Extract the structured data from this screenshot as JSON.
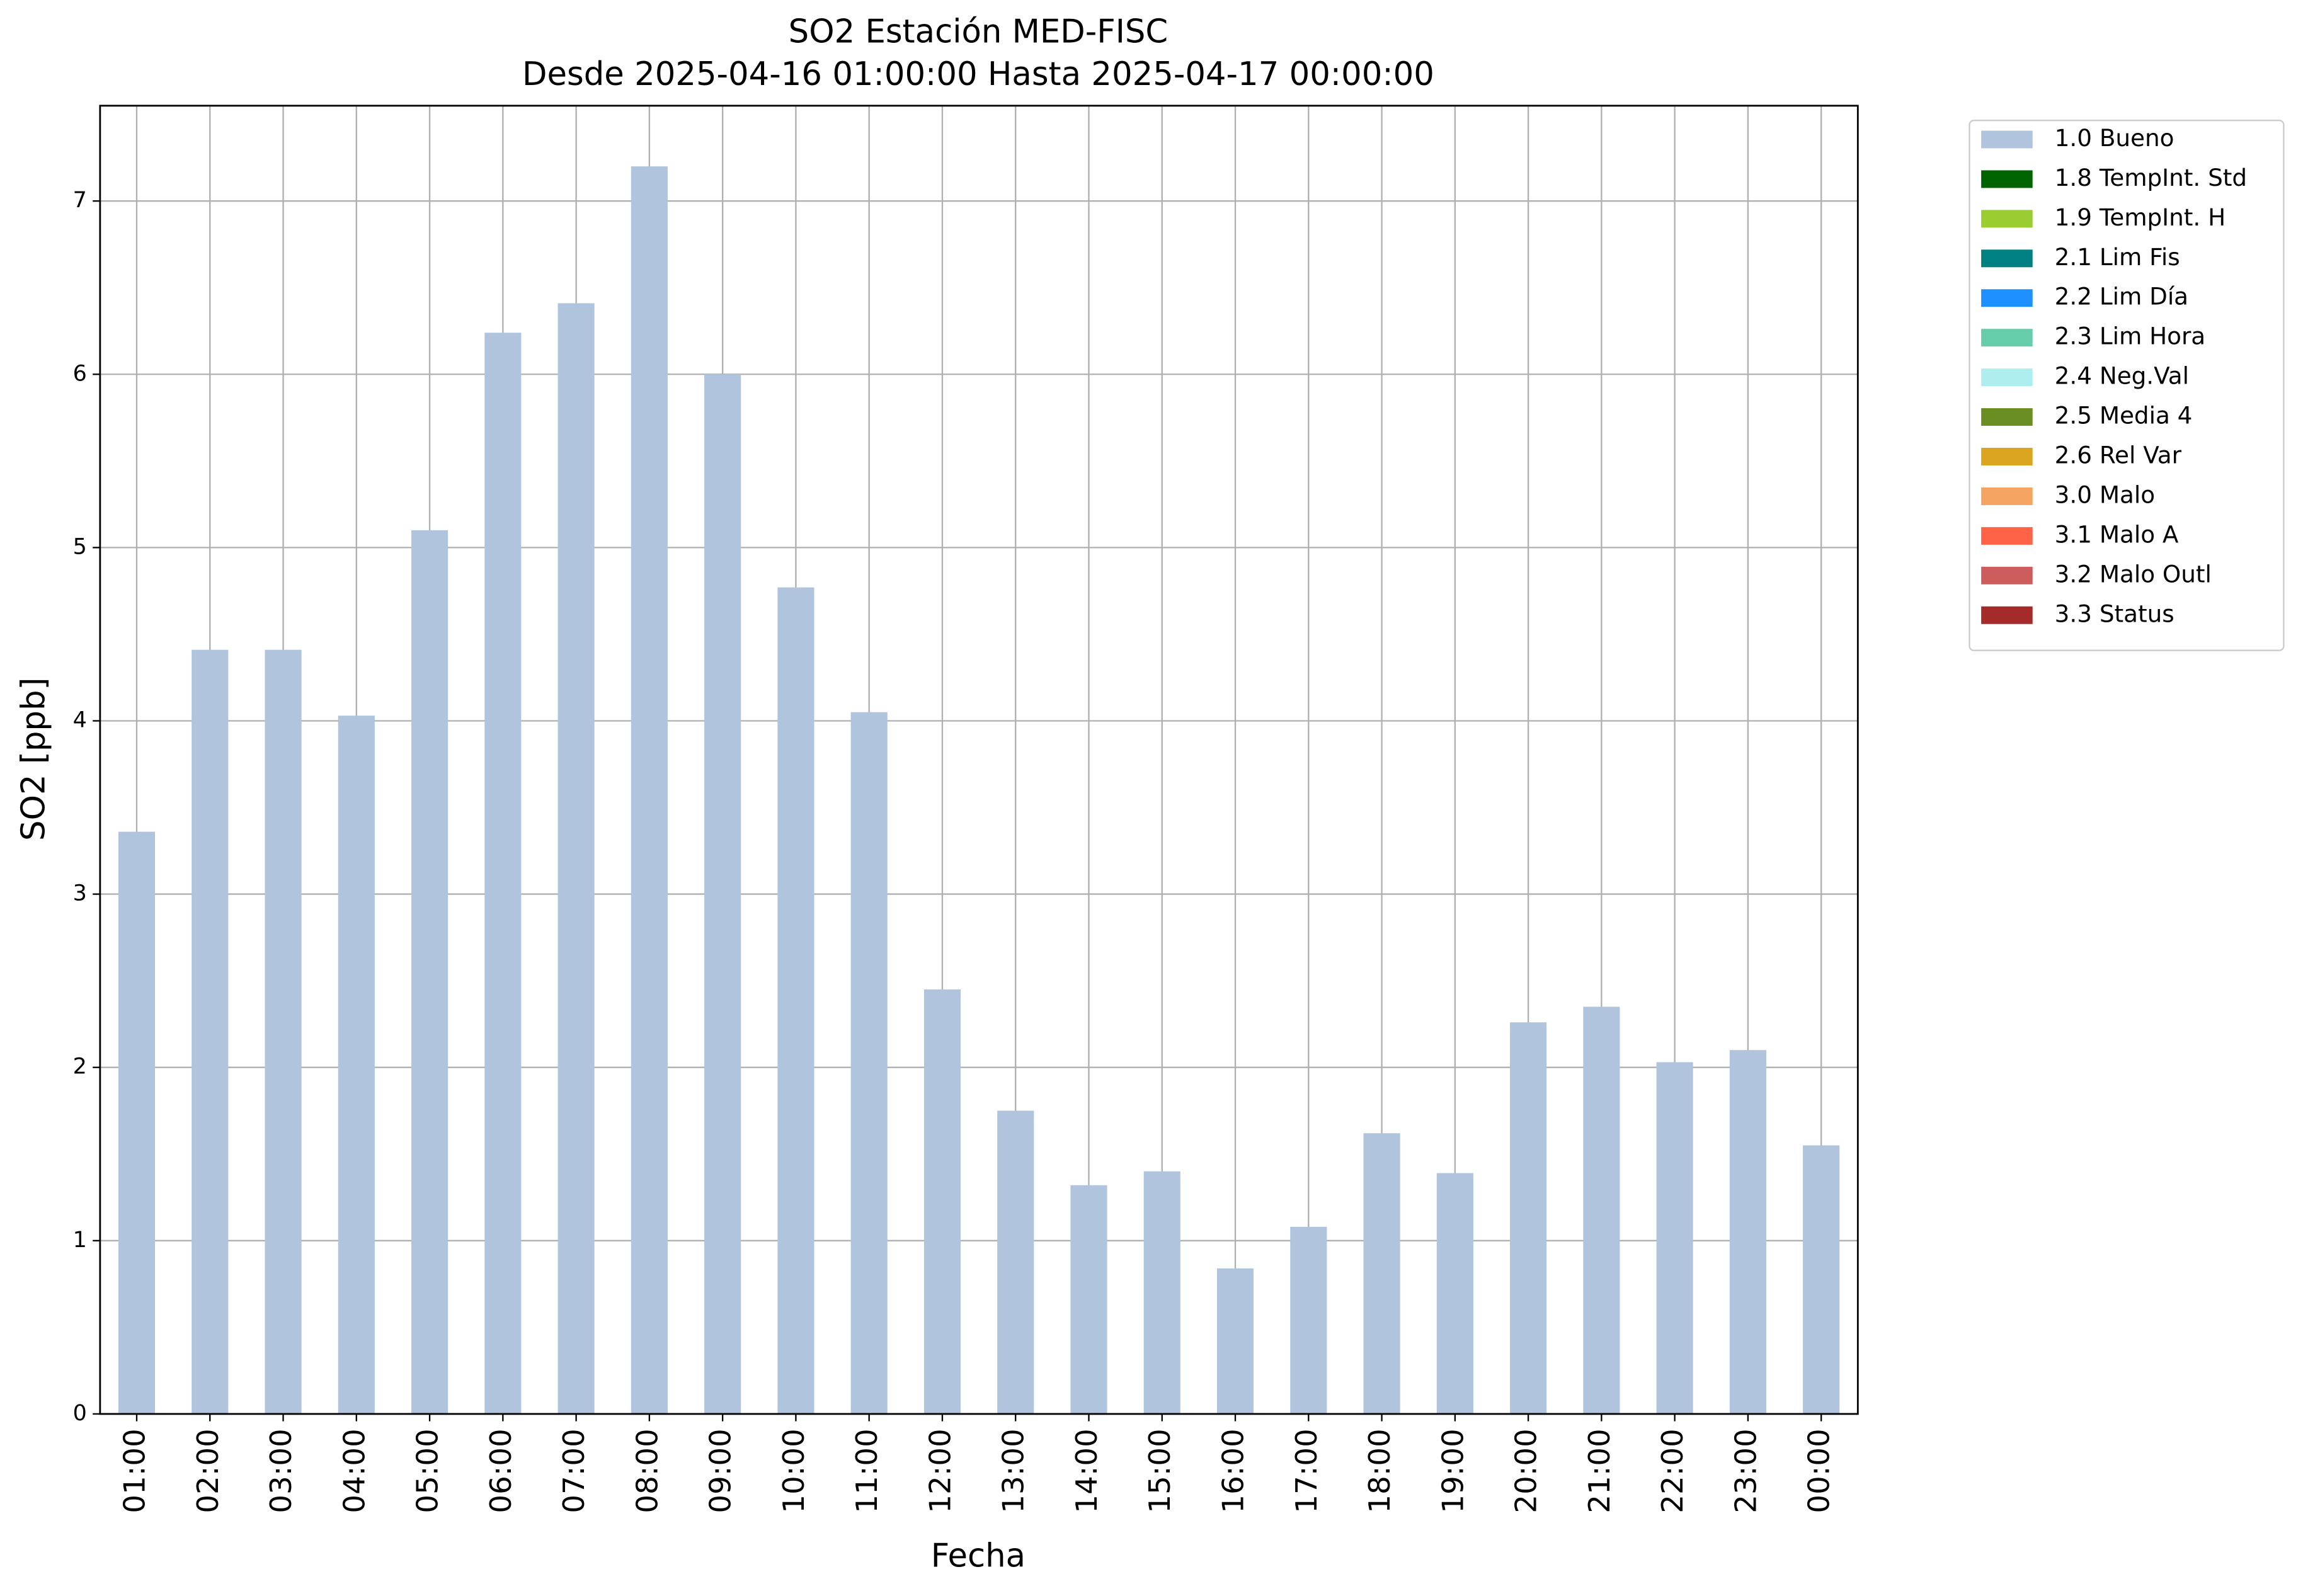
{
  "chart_data": {
    "type": "bar",
    "stacked": true,
    "title": "SO2 Estación MED-FISC",
    "subtitle": "Desde 2025-04-16 01:00:00 Hasta 2025-04-17 00:00:00",
    "x_label": "Fecha",
    "y_label": "SO2 [ppb]",
    "categories": [
      "01:00",
      "02:00",
      "03:00",
      "04:00",
      "05:00",
      "06:00",
      "07:00",
      "08:00",
      "09:00",
      "10:00",
      "11:00",
      "12:00",
      "13:00",
      "14:00",
      "15:00",
      "16:00",
      "17:00",
      "18:00",
      "19:00",
      "20:00",
      "21:00",
      "22:00",
      "23:00",
      "00:00"
    ],
    "series": [
      {
        "name": "1.0 Bueno",
        "color": "#b0c4de",
        "values": [
          3.36,
          4.41,
          4.41,
          4.03,
          5.1,
          6.24,
          6.41,
          7.2,
          6.0,
          4.77,
          4.05,
          2.45,
          1.75,
          1.32,
          1.4,
          0.84,
          1.08,
          1.62,
          1.39,
          2.26,
          2.35,
          2.03,
          2.1,
          1.55
        ]
      },
      {
        "name": "1.8 TempInt. Std",
        "color": "#006400",
        "values": [
          null,
          null,
          null,
          null,
          null,
          null,
          null,
          null,
          null,
          null,
          null,
          null,
          null,
          null,
          null,
          null,
          null,
          null,
          null,
          null,
          null,
          null,
          null,
          null
        ]
      },
      {
        "name": "1.9 TempInt. H",
        "color": "#9acd32",
        "values": [
          null,
          null,
          null,
          null,
          null,
          null,
          null,
          null,
          null,
          null,
          null,
          null,
          null,
          null,
          null,
          null,
          null,
          null,
          null,
          null,
          null,
          null,
          null,
          null
        ]
      },
      {
        "name": "2.1 Lim Fis",
        "color": "#008080",
        "values": [
          null,
          null,
          null,
          null,
          null,
          null,
          null,
          null,
          null,
          null,
          null,
          null,
          null,
          null,
          null,
          null,
          null,
          null,
          null,
          null,
          null,
          null,
          null,
          null
        ]
      },
      {
        "name": "2.2 Lim Día",
        "color": "#1e90ff",
        "values": [
          null,
          null,
          null,
          null,
          null,
          null,
          null,
          null,
          null,
          null,
          null,
          null,
          null,
          null,
          null,
          null,
          null,
          null,
          null,
          null,
          null,
          null,
          null,
          null
        ]
      },
      {
        "name": "2.3 Lim Hora",
        "color": "#66cdaa",
        "values": [
          null,
          null,
          null,
          null,
          null,
          null,
          null,
          null,
          null,
          null,
          null,
          null,
          null,
          null,
          null,
          null,
          null,
          null,
          null,
          null,
          null,
          null,
          null,
          null
        ]
      },
      {
        "name": "2.4 Neg.Val",
        "color": "#afeeee",
        "values": [
          null,
          null,
          null,
          null,
          null,
          null,
          null,
          null,
          null,
          null,
          null,
          null,
          null,
          null,
          null,
          null,
          null,
          null,
          null,
          null,
          null,
          null,
          null,
          null
        ]
      },
      {
        "name": "2.5 Media 4",
        "color": "#6b8e23",
        "values": [
          null,
          null,
          null,
          null,
          null,
          null,
          null,
          null,
          null,
          null,
          null,
          null,
          null,
          null,
          null,
          null,
          null,
          null,
          null,
          null,
          null,
          null,
          null,
          null
        ]
      },
      {
        "name": "2.6 Rel Var",
        "color": "#daa520",
        "values": [
          null,
          null,
          null,
          null,
          null,
          null,
          null,
          null,
          null,
          null,
          null,
          null,
          null,
          null,
          null,
          null,
          null,
          null,
          null,
          null,
          null,
          null,
          null,
          null
        ]
      },
      {
        "name": "3.0 Malo",
        "color": "#f4a460",
        "values": [
          null,
          null,
          null,
          null,
          null,
          null,
          null,
          null,
          null,
          null,
          null,
          null,
          null,
          null,
          null,
          null,
          null,
          null,
          null,
          null,
          null,
          null,
          null,
          null
        ]
      },
      {
        "name": "3.1 Malo A",
        "color": "#ff6347",
        "values": [
          null,
          null,
          null,
          null,
          null,
          null,
          null,
          null,
          null,
          null,
          null,
          null,
          null,
          null,
          null,
          null,
          null,
          null,
          null,
          null,
          null,
          null,
          null,
          null
        ]
      },
      {
        "name": "3.2 Malo Outl",
        "color": "#cd5c5c",
        "values": [
          null,
          null,
          null,
          null,
          null,
          null,
          null,
          null,
          null,
          null,
          null,
          null,
          null,
          null,
          null,
          null,
          null,
          null,
          null,
          null,
          null,
          null,
          null,
          null
        ]
      },
      {
        "name": "3.3 Status",
        "color": "#a52a2a",
        "values": [
          null,
          null,
          null,
          null,
          null,
          null,
          null,
          null,
          null,
          null,
          null,
          null,
          null,
          null,
          null,
          null,
          null,
          null,
          null,
          null,
          null,
          null,
          null,
          null
        ]
      }
    ],
    "ylim": [
      0,
      7.55
    ],
    "yticks": [
      0,
      1,
      2,
      3,
      4,
      5,
      6,
      7
    ],
    "grid": true,
    "legend": "outside-right"
  }
}
